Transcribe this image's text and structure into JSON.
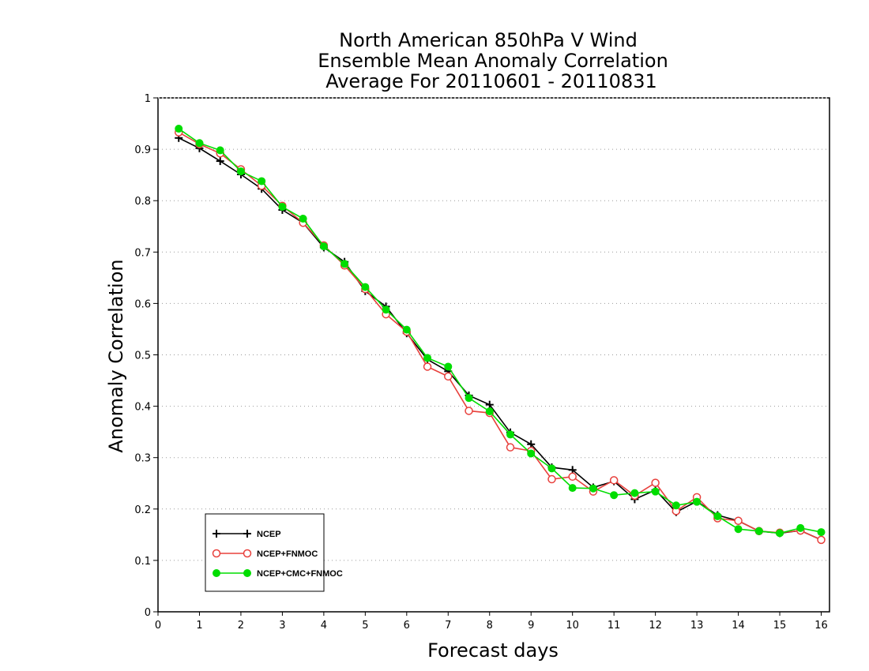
{
  "chart_data": {
    "type": "line",
    "title_lines": [
      "North American 850hPa V Wind",
      "Ensemble Mean Anomaly Correlation",
      "Average For 20110601 - 20110831"
    ],
    "xlabel": "Forecast days",
    "ylabel": "Anomaly Correlation",
    "xlim": [
      0,
      16.2
    ],
    "ylim": [
      0,
      1
    ],
    "x_ticks": [
      0,
      1,
      2,
      3,
      4,
      5,
      6,
      7,
      8,
      9,
      10,
      11,
      12,
      13,
      14,
      15,
      16
    ],
    "y_ticks": [
      0,
      0.1,
      0.2,
      0.3,
      0.4,
      0.5,
      0.6,
      0.7,
      0.8,
      0.9,
      1
    ],
    "y_tick_labels": [
      "0",
      "0.1",
      "0.2",
      "0.3",
      "0.4",
      "0.5",
      "0.6",
      "0.7",
      "0.8",
      "0.9",
      "1"
    ],
    "grid": "horizontal dotted",
    "legend_position": "bottom-left",
    "x": [
      0.5,
      1,
      1.5,
      2,
      2.5,
      3,
      3.5,
      4,
      4.5,
      5,
      5.5,
      6,
      6.5,
      7,
      7.5,
      8,
      8.5,
      9,
      9.5,
      10,
      10.5,
      11,
      11.5,
      12,
      12.5,
      13,
      13.5,
      14,
      14.5,
      15,
      15.5,
      16
    ],
    "series": [
      {
        "name": "NCEP",
        "color": "#000000",
        "marker": "plus",
        "values": [
          0.922,
          0.902,
          0.877,
          0.851,
          0.823,
          0.782,
          0.757,
          0.709,
          0.681,
          0.624,
          0.594,
          0.542,
          0.491,
          0.468,
          0.421,
          0.403,
          0.349,
          0.326,
          0.281,
          0.276,
          0.242,
          0.254,
          0.219,
          0.237,
          0.194,
          0.215,
          0.188,
          0.177,
          0.157,
          0.153,
          0.158,
          0.14
        ]
      },
      {
        "name": "NCEP+FNMOC",
        "color": "#e8403c",
        "marker": "open-circle",
        "values": [
          0.933,
          0.91,
          0.892,
          0.861,
          0.829,
          0.79,
          0.757,
          0.713,
          0.674,
          0.628,
          0.579,
          0.545,
          0.477,
          0.458,
          0.391,
          0.387,
          0.32,
          0.313,
          0.258,
          0.263,
          0.234,
          0.256,
          0.226,
          0.251,
          0.196,
          0.223,
          0.182,
          0.177,
          0.157,
          0.154,
          0.158,
          0.14
        ]
      },
      {
        "name": "NCEP+CMC+FNMOC",
        "color": "#00dd00",
        "marker": "filled-circle",
        "values": [
          0.94,
          0.912,
          0.898,
          0.857,
          0.838,
          0.788,
          0.765,
          0.711,
          0.677,
          0.632,
          0.588,
          0.549,
          0.494,
          0.477,
          0.416,
          0.39,
          0.345,
          0.308,
          0.279,
          0.241,
          0.24,
          0.227,
          0.231,
          0.234,
          0.207,
          0.214,
          0.186,
          0.161,
          0.157,
          0.153,
          0.163,
          0.155
        ]
      }
    ]
  }
}
